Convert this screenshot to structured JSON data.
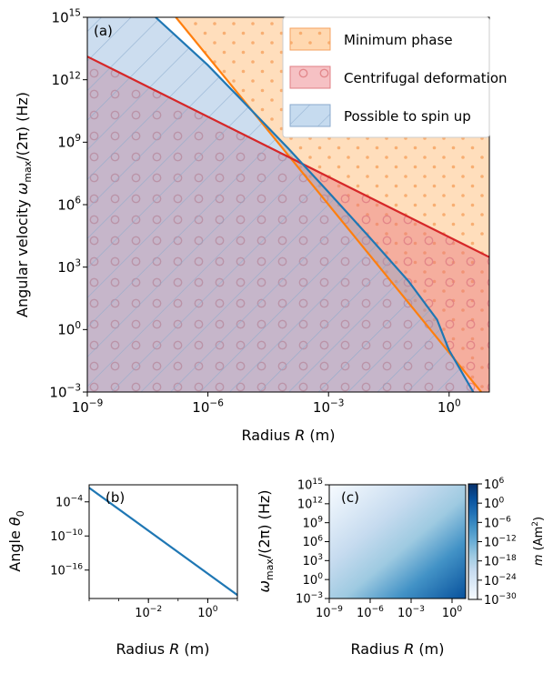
{
  "chart_data": [
    {
      "type": "area",
      "panel_label": "(a)",
      "xlabel_text": "Radius ",
      "xlabel_var": "R",
      "xlabel_unit": " (m)",
      "ylabel_text": "Angular velocity ",
      "ylabel_var": "ω",
      "ylabel_sub": "max",
      "ylabel_rest": "/(2π) (Hz)",
      "x_scale": "log",
      "y_scale": "log",
      "xlim": [
        1e-09,
        10.0
      ],
      "ylim": [
        0.001,
        1000000000000000.0
      ],
      "x_ticks": [
        {
          "value": 1e-09,
          "base": "10",
          "exp": "−9"
        },
        {
          "value": 1e-06,
          "base": "10",
          "exp": "−6"
        },
        {
          "value": 0.001,
          "base": "10",
          "exp": "−3"
        },
        {
          "value": 1,
          "base": "10",
          "exp": "0"
        }
      ],
      "y_ticks": [
        {
          "value": 0.001,
          "base": "10",
          "exp": "−3"
        },
        {
          "value": 1,
          "base": "10",
          "exp": "0"
        },
        {
          "value": 1000.0,
          "base": "10",
          "exp": "3"
        },
        {
          "value": 1000000.0,
          "base": "10",
          "exp": "6"
        },
        {
          "value": 1000000000.0,
          "base": "10",
          "exp": "9"
        },
        {
          "value": 1000000000000.0,
          "base": "10",
          "exp": "12"
        },
        {
          "value": 1000000000000000.0,
          "base": "10",
          "exp": "15"
        }
      ],
      "series": [
        {
          "name": "Minimum phase",
          "color": "#ff7f0e",
          "x": [
            1.6e-07,
            6.3
          ],
          "y": [
            1000000000000000.0,
            0.001
          ]
        },
        {
          "name": "Centrifugal deformation",
          "color": "#d62728",
          "x": [
            1e-09,
            10.0
          ],
          "y": [
            13000000000000.0,
            3000.0
          ]
        },
        {
          "name": "Possible to spin up",
          "color": "#1f77b4",
          "x": [
            5e-08,
            1e-06,
            1e-05,
            0.0001,
            0.001,
            0.01,
            0.1,
            0.5,
            1,
            4
          ],
          "y": [
            1000000000000000.0,
            5000000000000.0,
            50000000000.0,
            500000000.0,
            4000000.0,
            30000.0,
            200.0,
            3.0,
            0.1,
            0.001
          ]
        }
      ],
      "legend": {
        "placement": "upper right",
        "entries": [
          "Minimum phase",
          "Centrifugal deformation",
          "Possible to spin up"
        ]
      }
    },
    {
      "type": "line",
      "panel_label": "(b)",
      "xlabel_text": "Radius ",
      "xlabel_var": "R",
      "xlabel_unit": " (m)",
      "ylabel_text": "Angle ",
      "ylabel_var": "θ",
      "ylabel_sub": "0",
      "x_scale": "log",
      "y_scale": "log",
      "xlim": [
        0.0001,
        10.0
      ],
      "ylim": [
        1e-21,
        0.1
      ],
      "x_ticks": [
        {
          "value": 0.01,
          "base": "10",
          "exp": "−2"
        },
        {
          "value": 1,
          "base": "10",
          "exp": "0"
        }
      ],
      "y_ticks": [
        {
          "value": 1e-16,
          "base": "10",
          "exp": "−16"
        },
        {
          "value": 1e-10,
          "base": "10",
          "exp": "−10"
        },
        {
          "value": 0.0001,
          "base": "10",
          "exp": "−4"
        }
      ],
      "series": [
        {
          "color": "#1f77b4",
          "x": [
            0.0001,
            10.0
          ],
          "y": [
            0.03,
            4e-21
          ]
        }
      ]
    },
    {
      "type": "heatmap",
      "panel_label": "(c)",
      "xlabel_text": "Radius ",
      "xlabel_var": "R",
      "xlabel_unit": " (m)",
      "ylabel_var": "ω",
      "ylabel_sub": "max",
      "ylabel_rest": "/(2π) (Hz)",
      "x_scale": "log",
      "y_scale": "log",
      "xlim": [
        1e-09,
        10.0
      ],
      "ylim": [
        0.001,
        1000000000000000.0
      ],
      "x_ticks": [
        {
          "value": 1e-09,
          "base": "10",
          "exp": "−9"
        },
        {
          "value": 1e-06,
          "base": "10",
          "exp": "−6"
        },
        {
          "value": 0.001,
          "base": "10",
          "exp": "−3"
        },
        {
          "value": 1,
          "base": "10",
          "exp": "0"
        }
      ],
      "y_ticks": [
        {
          "value": 0.001,
          "base": "10",
          "exp": "−3"
        },
        {
          "value": 1,
          "base": "10",
          "exp": "0"
        },
        {
          "value": 1000.0,
          "base": "10",
          "exp": "3"
        },
        {
          "value": 1000000.0,
          "base": "10",
          "exp": "6"
        },
        {
          "value": 1000000000.0,
          "base": "10",
          "exp": "9"
        },
        {
          "value": 1000000000000.0,
          "base": "10",
          "exp": "12"
        },
        {
          "value": 1000000000000000.0,
          "base": "10",
          "exp": "15"
        }
      ],
      "colorbar": {
        "label_var": "m",
        "label_unit": " (Am",
        "label_unit_sup": "2",
        "label_unit_end": ")",
        "scale": "log",
        "range": [
          1e-30,
          1000000.0
        ],
        "colormap": "Blues",
        "ticks": [
          {
            "value": 1000000.0,
            "base": "10",
            "exp": "6"
          },
          {
            "value": 1,
            "base": "10",
            "exp": "0"
          },
          {
            "value": 1e-06,
            "base": "10",
            "exp": "−6"
          },
          {
            "value": 1e-12,
            "base": "10",
            "exp": "−12"
          },
          {
            "value": 1e-18,
            "base": "10",
            "exp": "−18"
          },
          {
            "value": 1e-24,
            "base": "10",
            "exp": "−24"
          },
          {
            "value": 1e-30,
            "base": "10",
            "exp": "−30"
          }
        ]
      }
    }
  ]
}
